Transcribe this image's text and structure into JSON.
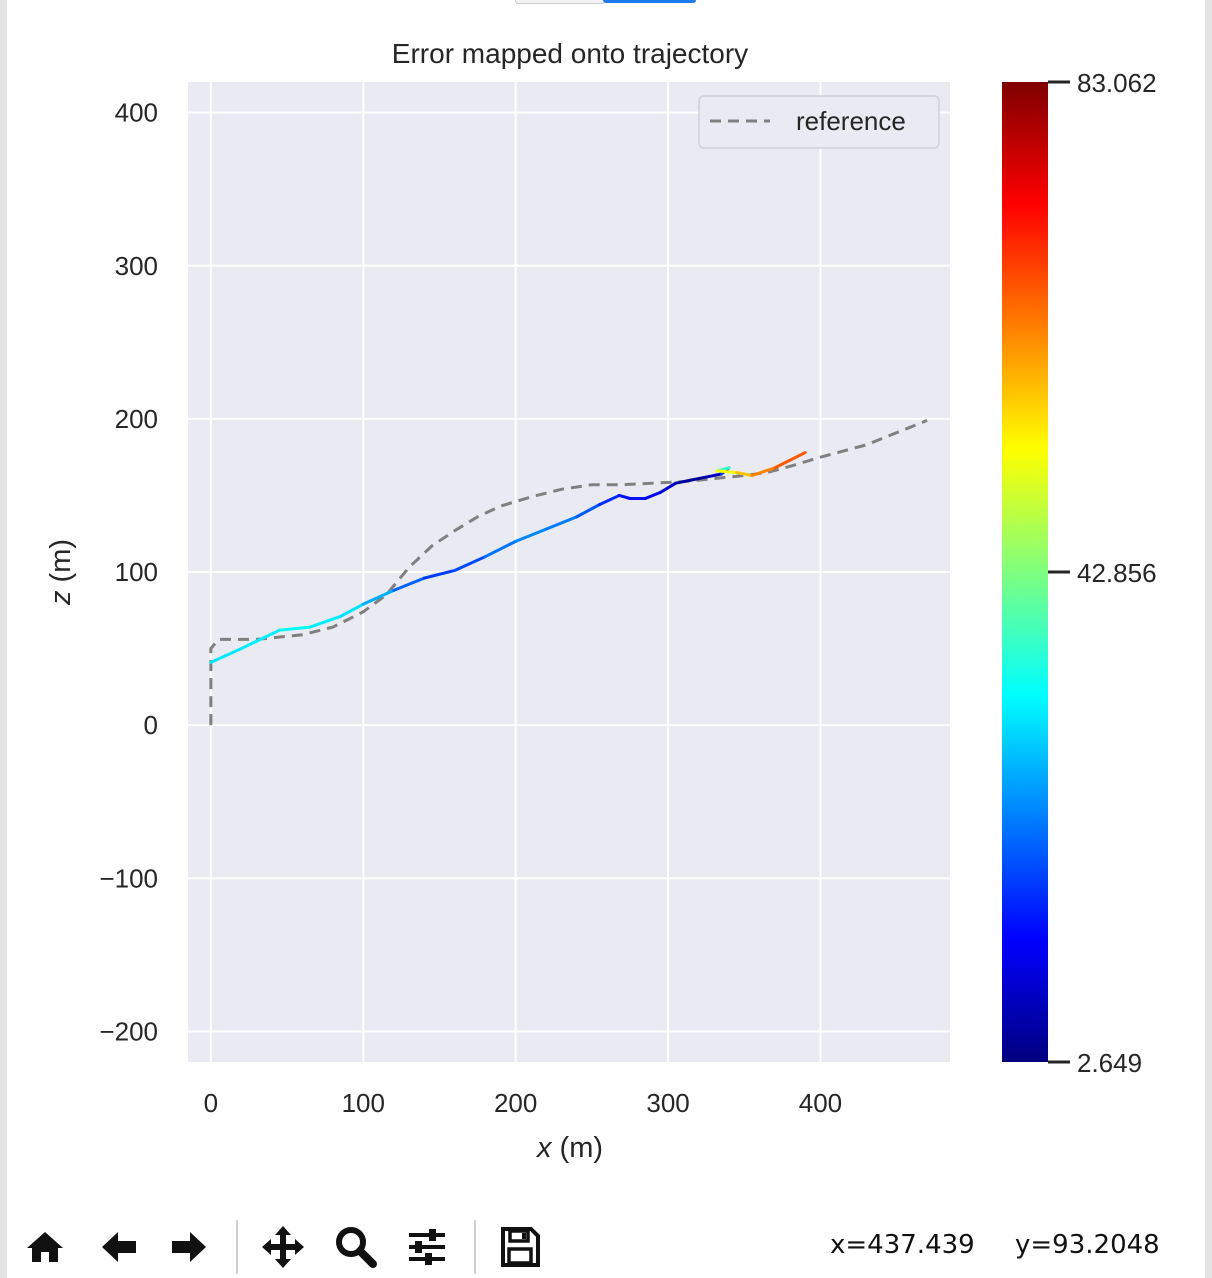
{
  "chart_data": {
    "type": "line",
    "title": "Error mapped onto trajectory",
    "xlabel": "x (m)",
    "ylabel": "z (m)",
    "xlim": [
      -15,
      485
    ],
    "ylim": [
      -220,
      420
    ],
    "xticks": [
      0,
      100,
      200,
      300,
      400
    ],
    "yticks": [
      400,
      300,
      200,
      100,
      0,
      -100,
      -200
    ],
    "ytick_labels": [
      "400",
      "300",
      "200",
      "100",
      "0",
      "−100",
      "−200"
    ],
    "grid": true,
    "legend": {
      "location": "top-right",
      "entries": [
        "reference"
      ]
    },
    "series": [
      {
        "name": "reference",
        "style": "dashed",
        "color": "#808080",
        "points": [
          [
            0,
            0
          ],
          [
            0,
            50
          ],
          [
            5,
            56
          ],
          [
            30,
            56
          ],
          [
            60,
            59
          ],
          [
            80,
            64
          ],
          [
            100,
            74
          ],
          [
            115,
            85
          ],
          [
            130,
            103
          ],
          [
            145,
            117
          ],
          [
            160,
            127
          ],
          [
            175,
            136
          ],
          [
            190,
            143
          ],
          [
            210,
            149
          ],
          [
            230,
            154
          ],
          [
            250,
            157
          ],
          [
            270,
            157
          ],
          [
            290,
            158
          ],
          [
            310,
            159
          ],
          [
            330,
            161
          ],
          [
            350,
            163
          ],
          [
            365,
            165
          ],
          [
            380,
            169
          ],
          [
            400,
            175
          ],
          [
            430,
            183
          ],
          [
            450,
            191
          ],
          [
            470,
            199
          ]
        ]
      },
      {
        "style": "colormapped",
        "points": [
          [
            0,
            41,
            32
          ],
          [
            20,
            50,
            30
          ],
          [
            45,
            62,
            33
          ],
          [
            65,
            64,
            32
          ],
          [
            85,
            71,
            31
          ],
          [
            100,
            79,
            30
          ],
          [
            120,
            88,
            23
          ],
          [
            140,
            96,
            18
          ],
          [
            160,
            101,
            17
          ],
          [
            180,
            110,
            20
          ],
          [
            200,
            120,
            24
          ],
          [
            220,
            128,
            23
          ],
          [
            240,
            136,
            22
          ],
          [
            255,
            144,
            18
          ],
          [
            268,
            150,
            14
          ],
          [
            275,
            148,
            14
          ],
          [
            285,
            148,
            14
          ],
          [
            295,
            152,
            12
          ],
          [
            305,
            158,
            7
          ],
          [
            315,
            160,
            4
          ],
          [
            325,
            162,
            6
          ],
          [
            335,
            164,
            9
          ],
          [
            340,
            168,
            25
          ],
          [
            332,
            166,
            50
          ],
          [
            345,
            165,
            55
          ],
          [
            355,
            163,
            60
          ],
          [
            370,
            168,
            65
          ],
          [
            390,
            178,
            67
          ]
        ]
      }
    ],
    "colorbar": {
      "min": 2.649,
      "max": 83.062,
      "tick_labels": [
        "83.062",
        "42.856",
        "2.649"
      ],
      "colormap": [
        "#00007f",
        "#0000ff",
        "#007fff",
        "#00ffff",
        "#7fff7f",
        "#ffff00",
        "#ff7f00",
        "#ff0000",
        "#7f0000"
      ]
    }
  },
  "toolbar": {
    "items": [
      "home-icon",
      "back-arrow-icon",
      "forward-arrow-icon",
      "pan-icon",
      "zoom-icon",
      "configure-subplots-icon",
      "save-icon"
    ]
  },
  "status": {
    "x_readout": "x=437.439",
    "y_readout": "y=93.2048"
  },
  "colors": {
    "plot_background": "#eaeaf2",
    "grid": "#ffffff"
  }
}
